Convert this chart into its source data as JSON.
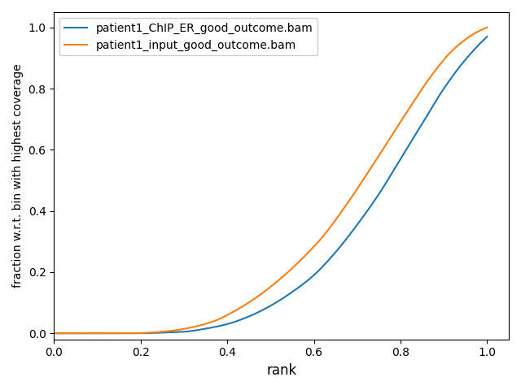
{
  "title": "",
  "xlabel": "rank",
  "ylabel": "fraction w.r.t. bin with highest coverage",
  "legend_labels": [
    "patient1_ChIP_ER_good_outcome.bam",
    "patient1_input_good_outcome.bam"
  ],
  "line_colors": [
    "#1f77b4",
    "#ff7f0e"
  ],
  "xlim": [
    0.0,
    1.05
  ],
  "ylim": [
    -0.02,
    1.05
  ],
  "chip_keypoints": [
    [
      0.0,
      0.0
    ],
    [
      0.1,
      0.0
    ],
    [
      0.2,
      0.0
    ],
    [
      0.25,
      0.002
    ],
    [
      0.3,
      0.005
    ],
    [
      0.35,
      0.015
    ],
    [
      0.4,
      0.03
    ],
    [
      0.45,
      0.055
    ],
    [
      0.5,
      0.09
    ],
    [
      0.55,
      0.135
    ],
    [
      0.6,
      0.19
    ],
    [
      0.65,
      0.265
    ],
    [
      0.7,
      0.355
    ],
    [
      0.75,
      0.455
    ],
    [
      0.8,
      0.57
    ],
    [
      0.85,
      0.685
    ],
    [
      0.9,
      0.8
    ],
    [
      0.95,
      0.895
    ],
    [
      1.0,
      0.97
    ]
  ],
  "input_keypoints": [
    [
      0.0,
      0.0
    ],
    [
      0.1,
      0.0
    ],
    [
      0.18,
      0.0
    ],
    [
      0.22,
      0.002
    ],
    [
      0.27,
      0.008
    ],
    [
      0.32,
      0.02
    ],
    [
      0.37,
      0.04
    ],
    [
      0.42,
      0.075
    ],
    [
      0.47,
      0.12
    ],
    [
      0.52,
      0.175
    ],
    [
      0.57,
      0.24
    ],
    [
      0.62,
      0.315
    ],
    [
      0.67,
      0.41
    ],
    [
      0.72,
      0.515
    ],
    [
      0.77,
      0.625
    ],
    [
      0.82,
      0.735
    ],
    [
      0.87,
      0.84
    ],
    [
      0.92,
      0.925
    ],
    [
      0.97,
      0.98
    ],
    [
      1.0,
      1.0
    ]
  ]
}
